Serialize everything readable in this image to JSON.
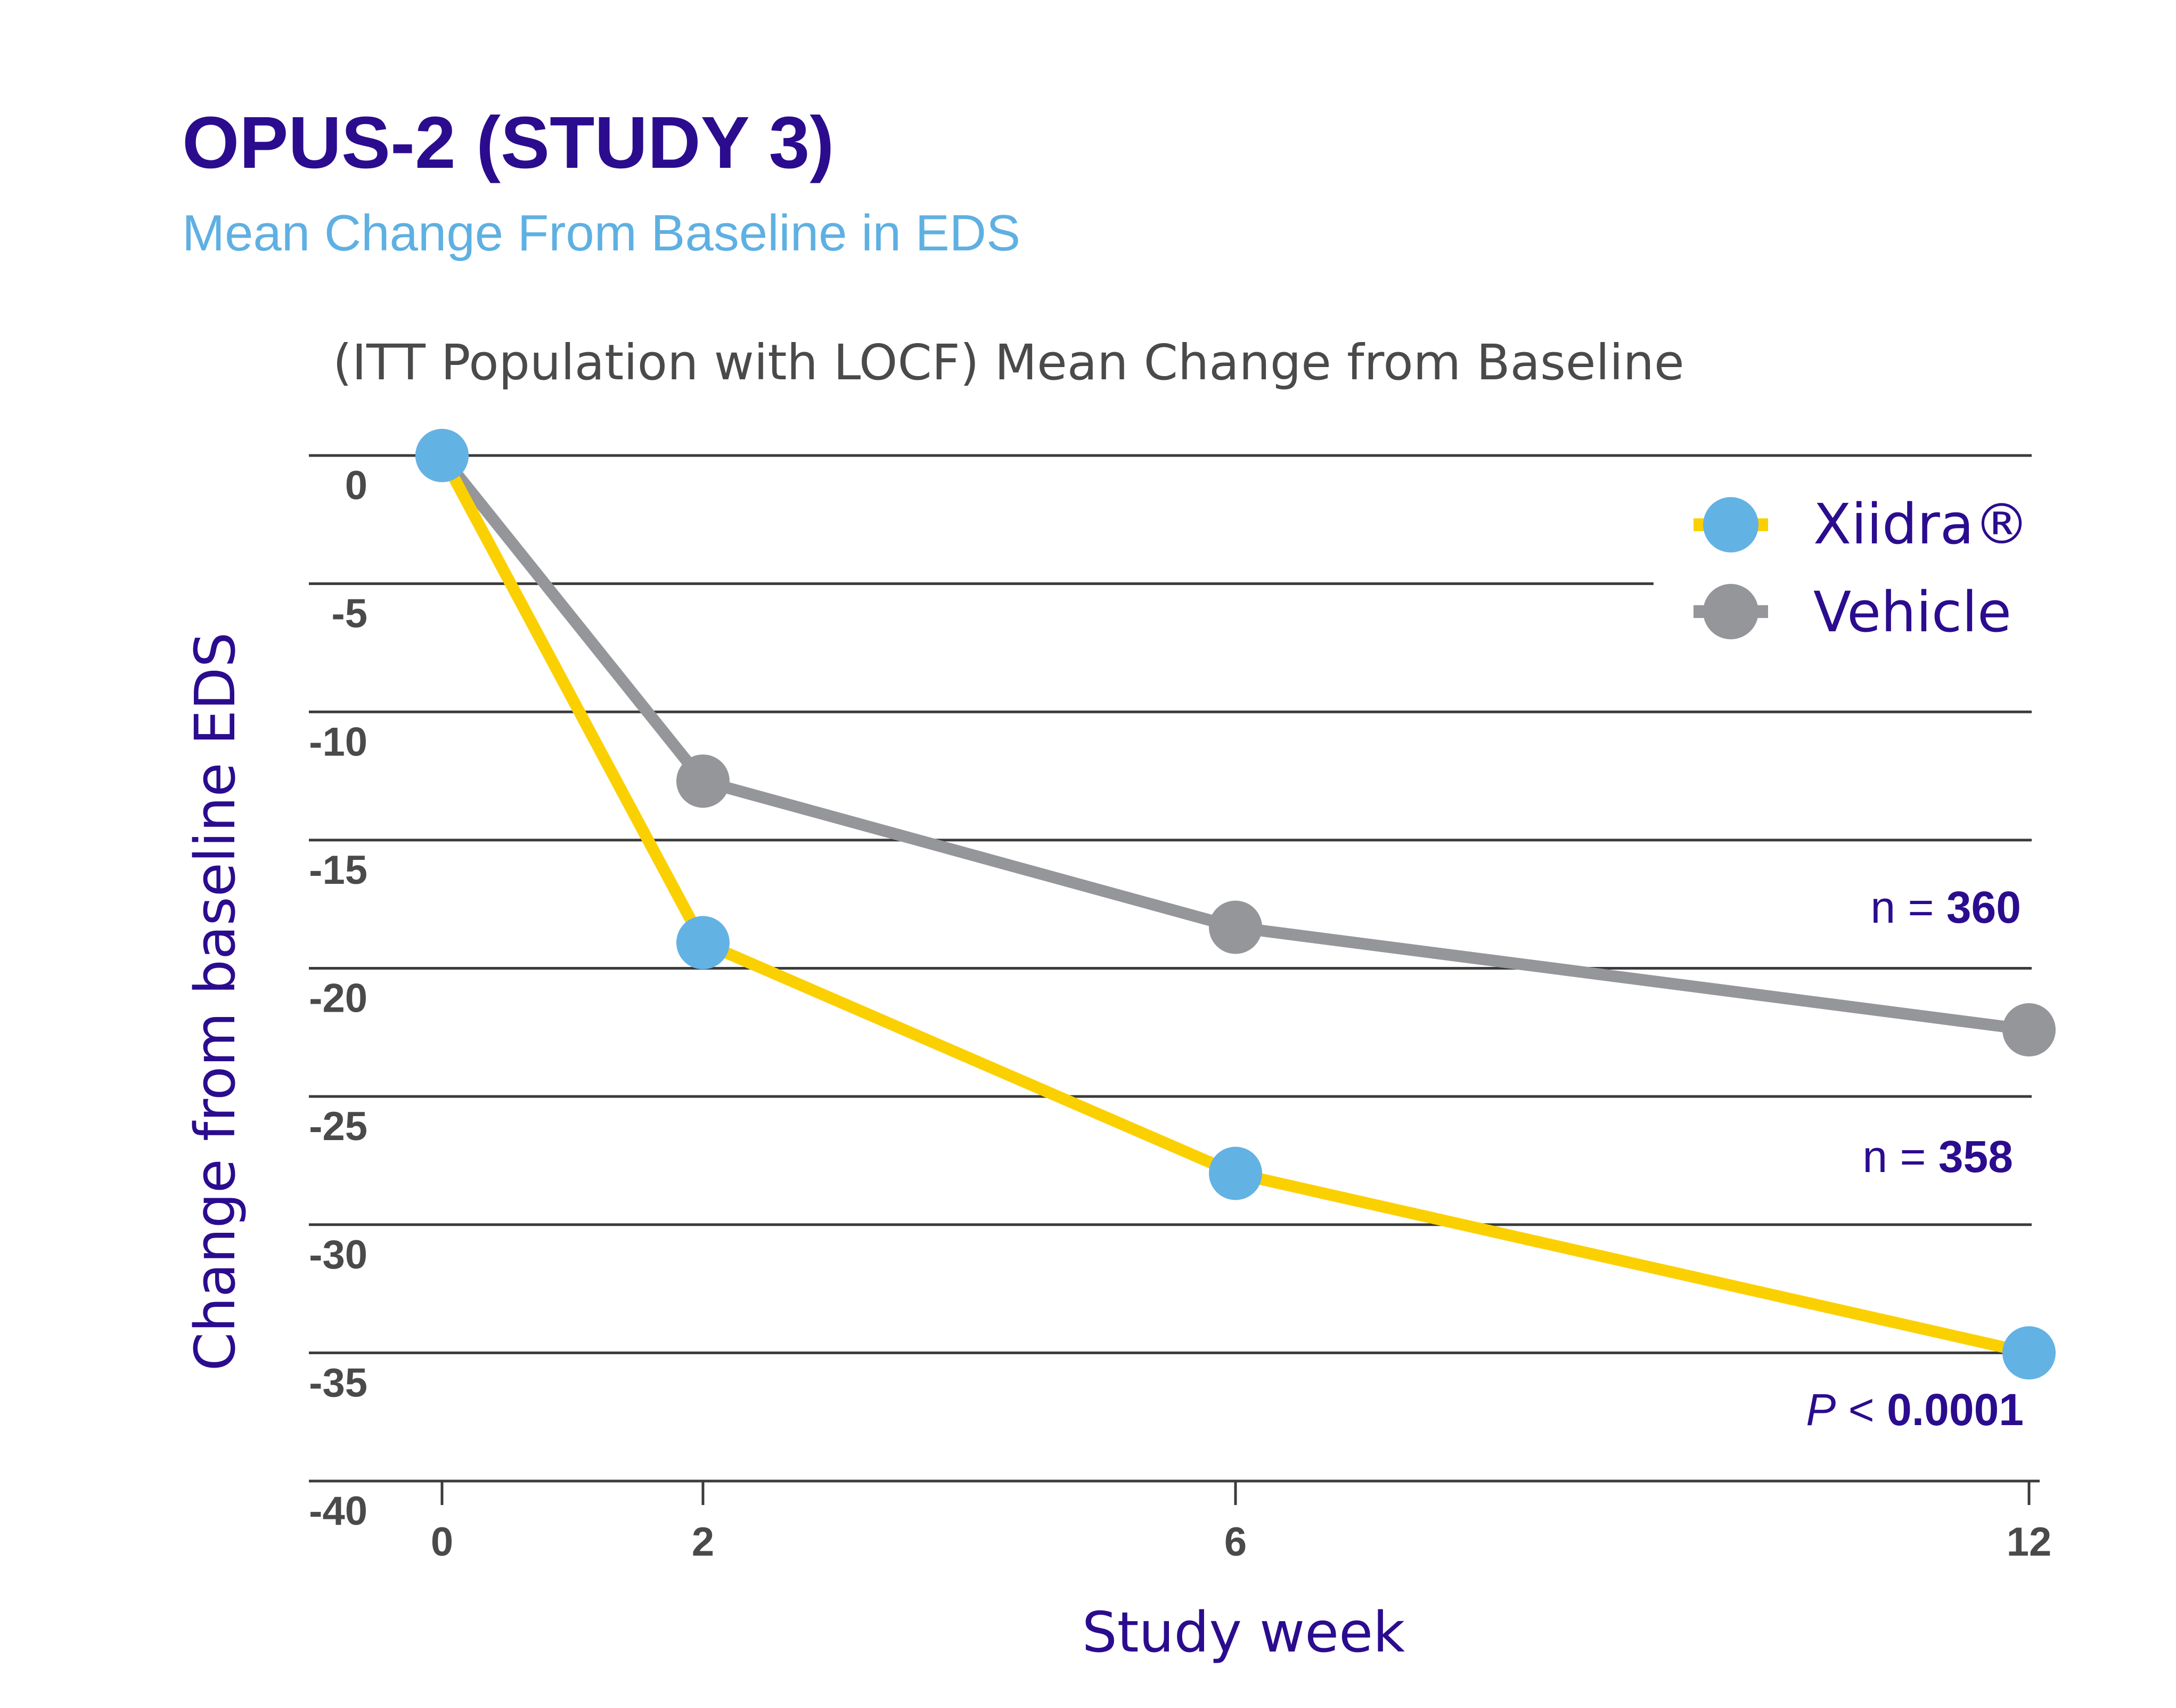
{
  "colors": {
    "title": "#2b0c8e",
    "subtitle": "#5fb0e2",
    "inner_title": "#4a4a4a",
    "tick": "#4a4a4a",
    "gridline": "#3b3b3b",
    "xiidra_line": "#fbd000",
    "xiidra_marker": "#63b2e4",
    "vehicle": "#94969a",
    "annotation": "#2b0c8e"
  },
  "header": {
    "title": "OPUS-2 (STUDY 3)",
    "subtitle": "Mean Change From Baseline in EDS"
  },
  "chart_data": {
    "type": "line",
    "title": "(ITT Population with LOCF) Mean Change from Baseline",
    "xlabel": "Study week",
    "ylabel": "Change from baseline EDS",
    "x": [
      0,
      2,
      6,
      12
    ],
    "x_tick_labels": [
      "0",
      "2",
      "6",
      "12"
    ],
    "ylim": [
      -40,
      0
    ],
    "y_ticks": [
      0,
      -5,
      -10,
      -15,
      -20,
      -25,
      -30,
      -35,
      -40
    ],
    "y_tick_labels": [
      "0",
      "-5",
      "-10",
      "-15",
      "-20",
      "-25",
      "-30",
      "-35",
      "-40"
    ],
    "grid": "horizontal",
    "legend_position": "top-right",
    "series": [
      {
        "name": "Xiidra®",
        "values": [
          0,
          -19,
          -28,
          -35
        ]
      },
      {
        "name": "Vehicle",
        "values": [
          0,
          -12.7,
          -18.4,
          -22.4
        ]
      }
    ],
    "annotations": {
      "vehicle_n": {
        "prefix": "n =",
        "value": "360"
      },
      "xiidra_n": {
        "prefix": "n =",
        "value": "358"
      },
      "p_value": {
        "italic": "P",
        "rest": " <",
        "value": "0.0001"
      }
    }
  }
}
